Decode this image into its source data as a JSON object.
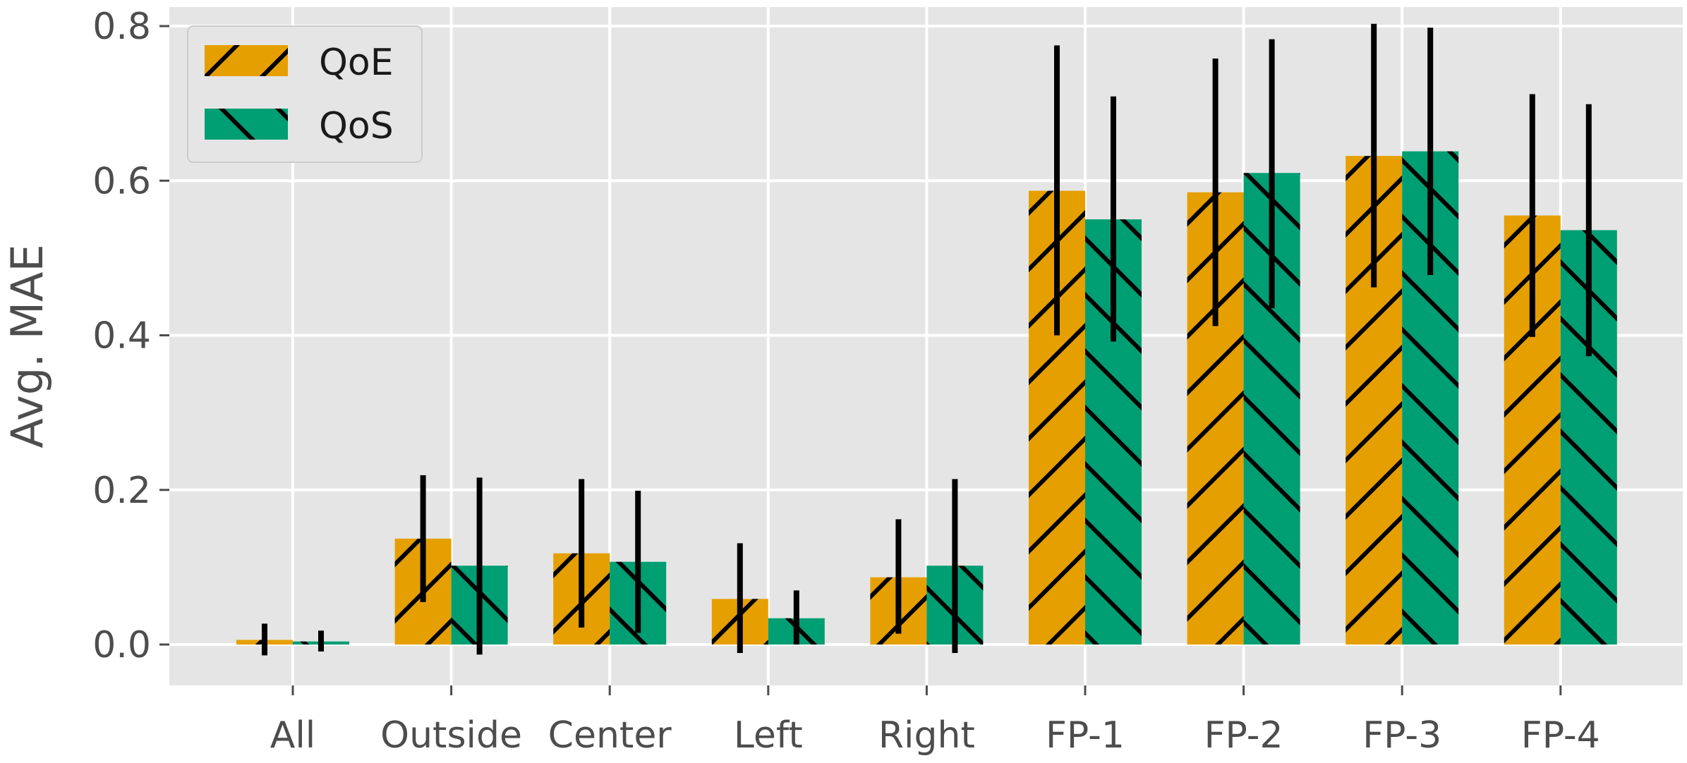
{
  "chart_data": {
    "type": "bar",
    "title": "",
    "xlabel": "",
    "ylabel": "Avg. MAE",
    "ylim": [
      -0.055,
      0.83
    ],
    "yticks": [
      0.0,
      0.2,
      0.4,
      0.6,
      0.8
    ],
    "ytick_labels": [
      "0.0",
      "0.2",
      "0.4",
      "0.6",
      "0.8"
    ],
    "grid": true,
    "legend_position": "top-left",
    "categories": [
      "All",
      "Outside",
      "Center",
      "Left",
      "Right",
      "FP-1",
      "FP-2",
      "FP-3",
      "FP-4"
    ],
    "series": [
      {
        "name": "QoE",
        "color": "#E69F00",
        "hatch": "forward-slash",
        "values": [
          0.006,
          0.137,
          0.118,
          0.059,
          0.087,
          0.587,
          0.585,
          0.632,
          0.555
        ],
        "error_low": [
          -0.014,
          0.055,
          0.022,
          -0.011,
          0.014,
          0.4,
          0.412,
          0.462,
          0.398
        ],
        "error_high": [
          0.027,
          0.219,
          0.214,
          0.131,
          0.162,
          0.775,
          0.758,
          0.803,
          0.712
        ]
      },
      {
        "name": "QoS",
        "color": "#009E73",
        "hatch": "back-slash",
        "values": [
          0.004,
          0.102,
          0.107,
          0.034,
          0.102,
          0.55,
          0.61,
          0.638,
          0.536
        ],
        "error_low": [
          -0.009,
          -0.013,
          0.015,
          0.0,
          -0.011,
          0.392,
          0.435,
          0.478,
          0.373
        ],
        "error_high": [
          0.018,
          0.216,
          0.199,
          0.07,
          0.214,
          0.709,
          0.783,
          0.798,
          0.699
        ]
      }
    ]
  }
}
